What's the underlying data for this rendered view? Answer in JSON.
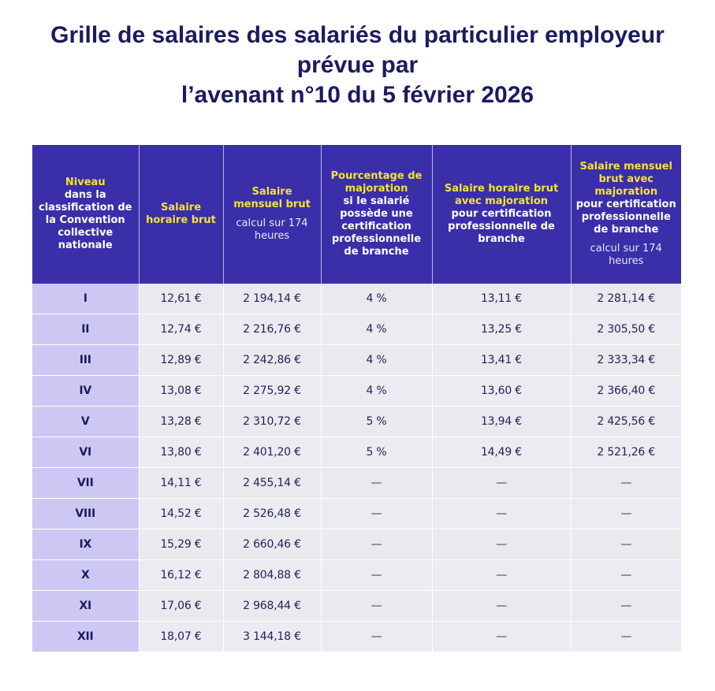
{
  "title": {
    "line1": "Grille de salaires des salariés du particulier employeur",
    "line2": "prévue par",
    "line3": "l’avenant n°10 du 5 février 2026"
  },
  "table": {
    "headers": [
      {
        "highlight": "Niveau",
        "text": "dans la classification de la Convention collective nationale",
        "note": ""
      },
      {
        "highlight": "Salaire horaire brut",
        "text": "",
        "note": ""
      },
      {
        "highlight": "Salaire mensuel brut",
        "text": "",
        "note": "calcul sur 174 heures"
      },
      {
        "highlight": "Pourcentage de majoration",
        "text": "si le salarié possède une certification professionnelle de branche",
        "note": ""
      },
      {
        "highlight": "Salaire horaire brut avec majoration",
        "text": "pour certification professionnelle de branche",
        "note": ""
      },
      {
        "highlight": "Salaire mensuel brut avec majoration",
        "text": "pour certification professionnelle de branche",
        "note": "calcul sur 174 heures"
      }
    ],
    "rows": [
      [
        "I",
        "12,61 €",
        "2 194,14 €",
        "4 %",
        "13,11 €",
        "2 281,14 €"
      ],
      [
        "II",
        "12,74 €",
        "2 216,76 €",
        "4 %",
        "13,25 €",
        "2 305,50 €"
      ],
      [
        "III",
        "12,89 €",
        "2 242,86 €",
        "4 %",
        "13,41 €",
        "2 333,34 €"
      ],
      [
        "IV",
        "13,08 €",
        "2 275,92 €",
        "4 %",
        "13,60 €",
        "2 366,40 €"
      ],
      [
        "V",
        "13,28 €",
        "2 310,72 €",
        "5 %",
        "13,94 €",
        "2 425,56 €"
      ],
      [
        "VI",
        "13,80 €",
        "2 401,20 €",
        "5 %",
        "14,49 €",
        "2 521,26 €"
      ],
      [
        "VII",
        "14,11 €",
        "2 455,14 €",
        "—",
        "—",
        "—"
      ],
      [
        "VIII",
        "14,52 €",
        "2 526,48 €",
        "—",
        "—",
        "—"
      ],
      [
        "IX",
        "15,29 €",
        "2 660,46 €",
        "—",
        "—",
        "—"
      ],
      [
        "X",
        "16,12 €",
        "2 804,88 €",
        "—",
        "—",
        "—"
      ],
      [
        "XI",
        "17,06 €",
        "2 968,44 €",
        "—",
        "—",
        "—"
      ],
      [
        "XII",
        "18,07 €",
        "3 144,18 €",
        "—",
        "—",
        "—"
      ]
    ]
  },
  "colors": {
    "title": "#1b1b5e",
    "header_bg": "#3a2fa8",
    "header_highlight": "#f5e23a",
    "level_cell_bg": "#cdc8f3",
    "row_bg": "#ebebf2"
  }
}
